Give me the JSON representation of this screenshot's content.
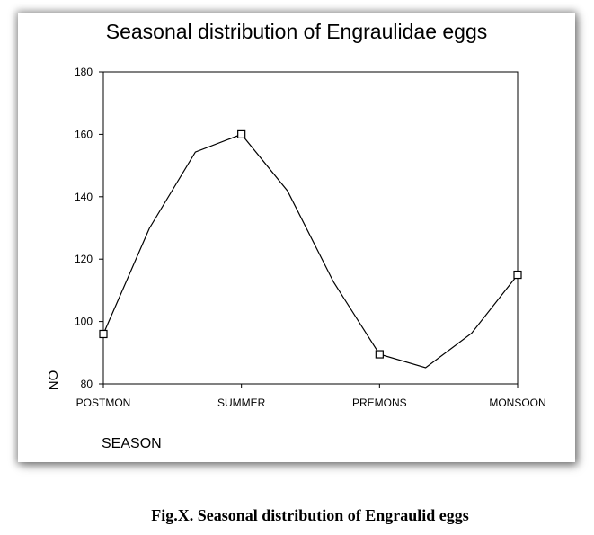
{
  "chart_data": {
    "type": "line",
    "title": "Seasonal distribution of Engraulidae eggs",
    "xlabel": "SEASON",
    "ylabel": "NO",
    "categories": [
      "POSTMON",
      "SUMMER",
      "PREMONS",
      "MONSOON"
    ],
    "ylim": [
      80,
      180
    ],
    "yticks": [
      80,
      100,
      120,
      140,
      160,
      180
    ],
    "series": [
      {
        "values": [
          96,
          160,
          89.5,
          115
        ],
        "marker": "square",
        "color": "#000000"
      }
    ],
    "interpolation": "smooth",
    "grid": false
  },
  "caption": "Fig.X. Seasonal distribution of Engraulid eggs"
}
